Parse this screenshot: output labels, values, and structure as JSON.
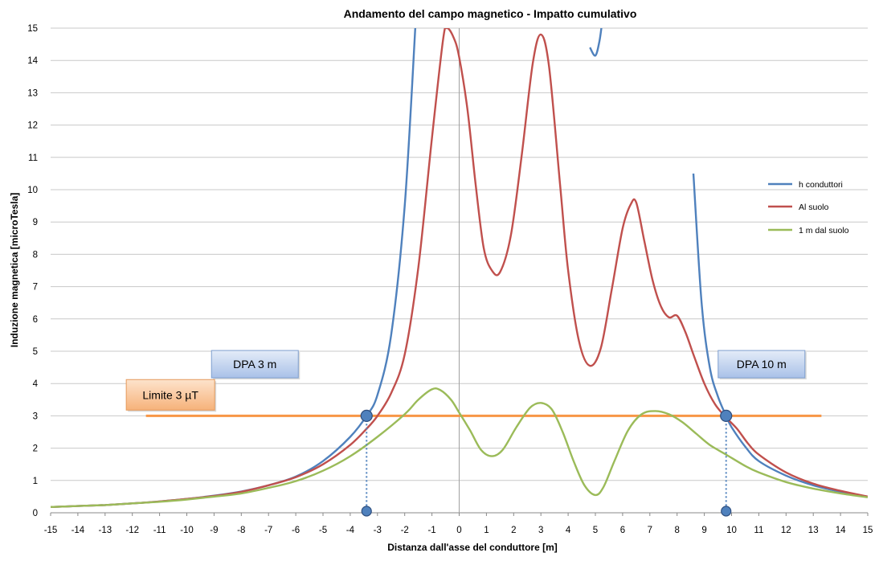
{
  "chart_data": {
    "type": "line",
    "title": "Andamento del campo magnetico  -  Impatto cumulativo",
    "xlabel": "Distanza dall'asse del conduttore [m]",
    "ylabel": "Induzione magnetica [microTesla]",
    "xlim": [
      -15,
      15
    ],
    "ylim": [
      0,
      15
    ],
    "xticks": [
      -15,
      -14,
      -13,
      -12,
      -11,
      -10,
      -9,
      -8,
      -7,
      -6,
      -5,
      -4,
      -3,
      -2,
      -1,
      0,
      1,
      2,
      3,
      4,
      5,
      6,
      7,
      8,
      9,
      10,
      11,
      12,
      13,
      14,
      15
    ],
    "yticks": [
      0,
      1,
      2,
      3,
      4,
      5,
      6,
      7,
      8,
      9,
      10,
      11,
      12,
      13,
      14,
      15
    ],
    "grid": "horizontal",
    "legend_position": "right",
    "series": [
      {
        "name": "h conduttori",
        "color": "#4F81BD",
        "points": [
          [
            -15,
            0.18
          ],
          [
            -14,
            0.21
          ],
          [
            -13,
            0.24
          ],
          [
            -12,
            0.29
          ],
          [
            -11,
            0.35
          ],
          [
            -10,
            0.43
          ],
          [
            -9,
            0.53
          ],
          [
            -8,
            0.66
          ],
          [
            -7,
            0.85
          ],
          [
            -6,
            1.12
          ],
          [
            -5,
            1.6
          ],
          [
            -4,
            2.35
          ],
          [
            -3.4,
            3.0
          ],
          [
            -3,
            3.65
          ],
          [
            -2.5,
            5.5
          ],
          [
            -2,
            9.5
          ],
          [
            -1.6,
            15.2
          ],
          [
            4.65,
            15.2
          ],
          [
            4.8,
            14.4
          ],
          [
            5,
            14.15
          ],
          [
            5.15,
            14.6
          ],
          [
            5.25,
            15.2
          ],
          [
            8.35,
            15.2
          ],
          [
            8.6,
            10.5
          ],
          [
            8.9,
            6.5
          ],
          [
            9.2,
            4.5
          ],
          [
            9.5,
            3.6
          ],
          [
            9.8,
            3.0
          ],
          [
            10,
            2.65
          ],
          [
            10.5,
            2.05
          ],
          [
            11,
            1.6
          ],
          [
            12,
            1.15
          ],
          [
            13,
            0.85
          ],
          [
            14,
            0.65
          ],
          [
            15,
            0.5
          ]
        ]
      },
      {
        "name": "Al suolo",
        "color": "#C0504D",
        "points": [
          [
            -15,
            0.18
          ],
          [
            -14,
            0.21
          ],
          [
            -13,
            0.24
          ],
          [
            -12,
            0.29
          ],
          [
            -11,
            0.35
          ],
          [
            -10,
            0.43
          ],
          [
            -9,
            0.52
          ],
          [
            -8,
            0.65
          ],
          [
            -7,
            0.85
          ],
          [
            -6,
            1.1
          ],
          [
            -5,
            1.5
          ],
          [
            -4,
            2.1
          ],
          [
            -3.4,
            2.6
          ],
          [
            -3,
            3.0
          ],
          [
            -2.5,
            3.7
          ],
          [
            -2,
            4.9
          ],
          [
            -1.5,
            7.6
          ],
          [
            -1,
            11.6
          ],
          [
            -0.6,
            14.6
          ],
          [
            -0.45,
            15.0
          ],
          [
            -0.2,
            14.7
          ],
          [
            0,
            14.1
          ],
          [
            0.3,
            12.5
          ],
          [
            0.6,
            10.2
          ],
          [
            0.9,
            8.2
          ],
          [
            1.2,
            7.5
          ],
          [
            1.5,
            7.45
          ],
          [
            1.9,
            8.6
          ],
          [
            2.3,
            11.1
          ],
          [
            2.7,
            13.9
          ],
          [
            3.0,
            14.8
          ],
          [
            3.3,
            13.8
          ],
          [
            3.7,
            10.2
          ],
          [
            4.0,
            7.5
          ],
          [
            4.4,
            5.3
          ],
          [
            4.8,
            4.55
          ],
          [
            5.2,
            5.1
          ],
          [
            5.6,
            6.9
          ],
          [
            6.0,
            8.8
          ],
          [
            6.3,
            9.55
          ],
          [
            6.5,
            9.6
          ],
          [
            6.8,
            8.4
          ],
          [
            7.1,
            7.2
          ],
          [
            7.4,
            6.4
          ],
          [
            7.7,
            6.05
          ],
          [
            8.0,
            6.1
          ],
          [
            8.3,
            5.6
          ],
          [
            8.6,
            4.9
          ],
          [
            9.0,
            4.0
          ],
          [
            9.4,
            3.35
          ],
          [
            9.8,
            2.95
          ],
          [
            10.2,
            2.6
          ],
          [
            10.6,
            2.15
          ],
          [
            11,
            1.8
          ],
          [
            12,
            1.25
          ],
          [
            13,
            0.9
          ],
          [
            14,
            0.68
          ],
          [
            15,
            0.5
          ]
        ]
      },
      {
        "name": "1 m dal suolo",
        "color": "#9BBB59",
        "points": [
          [
            -15,
            0.18
          ],
          [
            -14,
            0.21
          ],
          [
            -13,
            0.24
          ],
          [
            -12,
            0.29
          ],
          [
            -11,
            0.34
          ],
          [
            -10,
            0.41
          ],
          [
            -9,
            0.5
          ],
          [
            -8,
            0.6
          ],
          [
            -7,
            0.77
          ],
          [
            -6,
            0.98
          ],
          [
            -5,
            1.3
          ],
          [
            -4,
            1.75
          ],
          [
            -3,
            2.35
          ],
          [
            -2,
            3.05
          ],
          [
            -1.5,
            3.5
          ],
          [
            -1.0,
            3.82
          ],
          [
            -0.7,
            3.8
          ],
          [
            -0.3,
            3.5
          ],
          [
            0,
            3.1
          ],
          [
            0.4,
            2.55
          ],
          [
            0.8,
            1.95
          ],
          [
            1.2,
            1.75
          ],
          [
            1.6,
            1.95
          ],
          [
            2.1,
            2.65
          ],
          [
            2.6,
            3.25
          ],
          [
            3.0,
            3.4
          ],
          [
            3.4,
            3.2
          ],
          [
            3.8,
            2.5
          ],
          [
            4.2,
            1.6
          ],
          [
            4.6,
            0.85
          ],
          [
            5.0,
            0.55
          ],
          [
            5.3,
            0.8
          ],
          [
            5.7,
            1.6
          ],
          [
            6.2,
            2.55
          ],
          [
            6.7,
            3.05
          ],
          [
            7.2,
            3.15
          ],
          [
            7.7,
            3.05
          ],
          [
            8.2,
            2.8
          ],
          [
            8.7,
            2.45
          ],
          [
            9.2,
            2.1
          ],
          [
            9.8,
            1.8
          ],
          [
            10.5,
            1.45
          ],
          [
            11,
            1.25
          ],
          [
            12,
            0.95
          ],
          [
            13,
            0.75
          ],
          [
            14,
            0.6
          ],
          [
            15,
            0.48
          ]
        ]
      },
      {
        "name": "Limite 3 µT",
        "color": "#F79646",
        "points": [
          [
            -11.5,
            3.0
          ],
          [
            13.3,
            3.0
          ]
        ]
      }
    ],
    "markers": [
      {
        "x": -3.4,
        "y": 3.0
      },
      {
        "x": -3.4,
        "y": 0.05
      },
      {
        "x": 9.8,
        "y": 3.0
      },
      {
        "x": 9.8,
        "y": 0.05
      }
    ],
    "marker_color": "#4F81BD",
    "annotations": [
      {
        "text": "DPA 3  m",
        "x": -7.5,
        "y": 4.6
      },
      {
        "text": "DPA 10  m",
        "x": 11.1,
        "y": 4.6
      },
      {
        "text": "Limite 3 µT",
        "x": -10.6,
        "y": 3.65
      }
    ]
  }
}
